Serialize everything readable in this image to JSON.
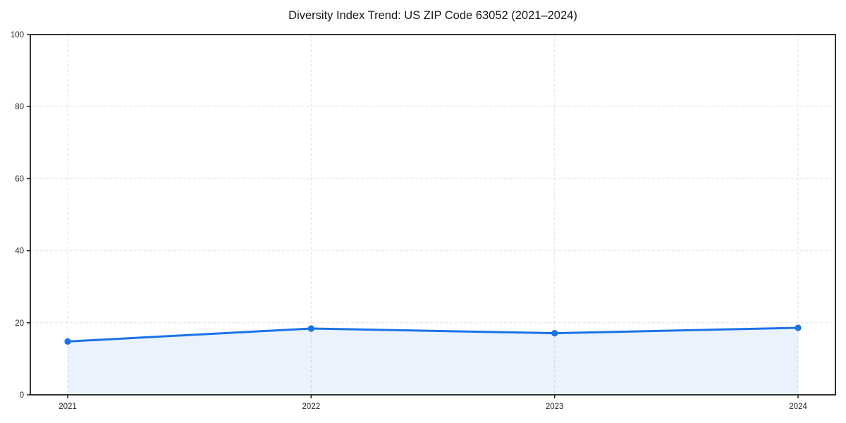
{
  "chart_data": {
    "type": "line",
    "title": "Diversity Index Trend: US ZIP Code 63052 (2021–2024)",
    "x": [
      2021,
      2022,
      2023,
      2024
    ],
    "series": [
      {
        "name": "Diversity Index",
        "values": [
          14.8,
          18.4,
          17.1,
          18.6
        ]
      }
    ],
    "xlabel": "",
    "ylabel": "",
    "ylim": [
      0,
      100
    ],
    "yticks": [
      0,
      20,
      40,
      60,
      80,
      100
    ],
    "xtick_labels": [
      "2021",
      "2022",
      "2023",
      "2024"
    ],
    "ytick_labels": [
      "0",
      "20",
      "40",
      "60",
      "80",
      "100"
    ],
    "grid": true,
    "grid_style": "dashed",
    "legend": "none",
    "area_fill": true,
    "marker": "circle",
    "colors": {
      "line": "#1a73e8",
      "marker": "#1a73e8",
      "area": "rgba(26,115,232,0.09)",
      "grid": "#e2e2e2",
      "spine": "#1c1c1c",
      "tick_label": "#262626",
      "background": "#ffffff"
    }
  }
}
